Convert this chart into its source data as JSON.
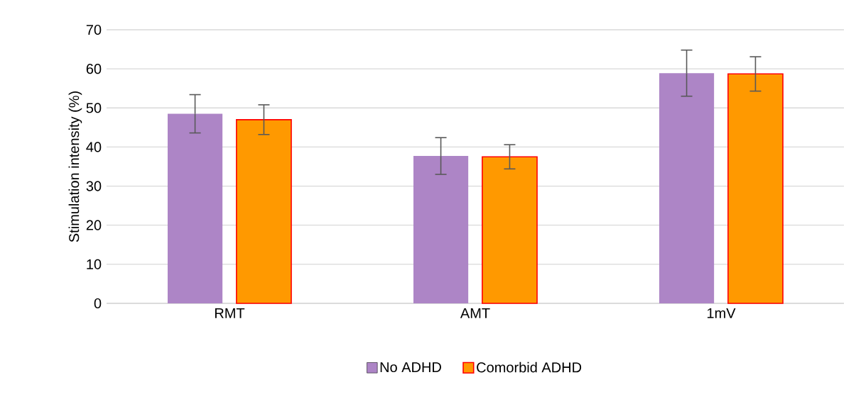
{
  "chart_data": {
    "type": "bar",
    "ylabel": "Stimulation intensity (%)",
    "categories": [
      "RMT",
      "AMT",
      "1mV"
    ],
    "series": [
      {
        "name": "No ADHD",
        "color": "#ad85c6",
        "values": [
          48.5,
          37.7,
          58.9
        ],
        "errors": [
          4.9,
          4.7,
          5.9
        ]
      },
      {
        "name": "Comorbid ADHD",
        "color": "#ff9900",
        "values": [
          47.0,
          37.5,
          58.7
        ],
        "errors": [
          3.8,
          3.1,
          4.4
        ]
      }
    ],
    "ylim": [
      0,
      70
    ],
    "yticks": [
      0,
      10,
      20,
      30,
      40,
      50,
      60,
      70
    ],
    "grid": "y",
    "legend": "bottom"
  }
}
